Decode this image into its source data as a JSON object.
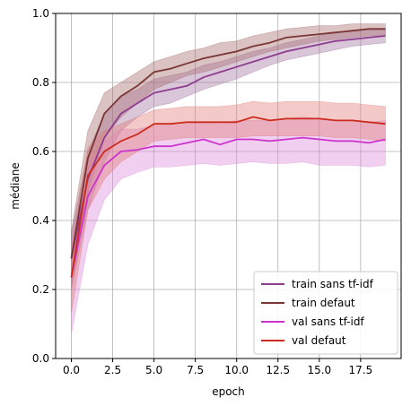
{
  "chart_data": {
    "type": "line",
    "xlabel": "epoch",
    "ylabel": "médiane",
    "xlim": [
      -0.95,
      19.95
    ],
    "ylim": [
      0.0,
      1.0
    ],
    "x_ticks": [
      "0.0",
      "2.5",
      "5.0",
      "7.5",
      "10.0",
      "12.5",
      "15.0",
      "17.5"
    ],
    "y_ticks": [
      "0.0",
      "0.2",
      "0.4",
      "0.6",
      "0.8",
      "1.0"
    ],
    "grid": true,
    "legend_position": "lower-right",
    "x": [
      0,
      1,
      2,
      3,
      4,
      5,
      6,
      7,
      8,
      9,
      10,
      11,
      12,
      13,
      14,
      15,
      16,
      17,
      18,
      19
    ],
    "series": [
      {
        "name": "train sans tf-idf",
        "color": "#8e3d8e",
        "band_color": "#a070a0",
        "values": [
          0.29,
          0.52,
          0.64,
          0.71,
          0.74,
          0.77,
          0.78,
          0.79,
          0.815,
          0.83,
          0.845,
          0.86,
          0.875,
          0.89,
          0.9,
          0.91,
          0.92,
          0.925,
          0.93,
          0.935
        ],
        "band_low": [
          0.2,
          0.43,
          0.57,
          0.66,
          0.7,
          0.73,
          0.74,
          0.76,
          0.78,
          0.795,
          0.81,
          0.83,
          0.85,
          0.865,
          0.875,
          0.885,
          0.895,
          0.905,
          0.91,
          0.915
        ],
        "band_high": [
          0.36,
          0.6,
          0.71,
          0.76,
          0.78,
          0.81,
          0.82,
          0.83,
          0.85,
          0.86,
          0.875,
          0.89,
          0.9,
          0.915,
          0.925,
          0.935,
          0.945,
          0.95,
          0.955,
          0.955
        ]
      },
      {
        "name": "train defaut",
        "color": "#7a3535",
        "band_color": "#a46a6a",
        "values": [
          0.29,
          0.58,
          0.71,
          0.76,
          0.79,
          0.83,
          0.84,
          0.855,
          0.87,
          0.88,
          0.89,
          0.905,
          0.915,
          0.93,
          0.935,
          0.94,
          0.945,
          0.95,
          0.955,
          0.955
        ],
        "band_low": [
          0.2,
          0.48,
          0.64,
          0.7,
          0.74,
          0.78,
          0.8,
          0.82,
          0.83,
          0.845,
          0.86,
          0.875,
          0.89,
          0.9,
          0.91,
          0.92,
          0.925,
          0.93,
          0.935,
          0.935
        ],
        "band_high": [
          0.37,
          0.66,
          0.77,
          0.8,
          0.83,
          0.86,
          0.875,
          0.89,
          0.9,
          0.915,
          0.92,
          0.935,
          0.945,
          0.955,
          0.96,
          0.965,
          0.965,
          0.97,
          0.97,
          0.97
        ]
      },
      {
        "name": "val sans tf-idf",
        "color": "#cc33cc",
        "band_color": "#dd88dd",
        "values": [
          0.235,
          0.47,
          0.56,
          0.6,
          0.605,
          0.615,
          0.615,
          0.625,
          0.635,
          0.62,
          0.635,
          0.635,
          0.63,
          0.635,
          0.64,
          0.635,
          0.63,
          0.63,
          0.625,
          0.635
        ],
        "band_low": [
          0.07,
          0.33,
          0.46,
          0.52,
          0.54,
          0.555,
          0.555,
          0.56,
          0.565,
          0.56,
          0.565,
          0.57,
          0.565,
          0.565,
          0.57,
          0.56,
          0.56,
          0.56,
          0.555,
          0.56
        ],
        "band_high": [
          0.33,
          0.56,
          0.63,
          0.665,
          0.665,
          0.675,
          0.675,
          0.68,
          0.685,
          0.68,
          0.69,
          0.69,
          0.69,
          0.695,
          0.7,
          0.695,
          0.69,
          0.69,
          0.685,
          0.69
        ]
      },
      {
        "name": "val defaut",
        "color": "#cc2b1e",
        "band_color": "#e07a73",
        "values": [
          0.235,
          0.53,
          0.6,
          0.63,
          0.65,
          0.68,
          0.68,
          0.685,
          0.685,
          0.685,
          0.685,
          0.7,
          0.69,
          0.695,
          0.695,
          0.695,
          0.69,
          0.69,
          0.685,
          0.68
        ],
        "band_low": [
          0.13,
          0.43,
          0.52,
          0.57,
          0.6,
          0.63,
          0.635,
          0.64,
          0.64,
          0.64,
          0.64,
          0.645,
          0.645,
          0.645,
          0.645,
          0.645,
          0.64,
          0.64,
          0.635,
          0.63
        ],
        "band_high": [
          0.32,
          0.61,
          0.66,
          0.68,
          0.7,
          0.72,
          0.725,
          0.73,
          0.73,
          0.73,
          0.735,
          0.745,
          0.74,
          0.745,
          0.745,
          0.745,
          0.74,
          0.74,
          0.735,
          0.73
        ]
      }
    ]
  }
}
